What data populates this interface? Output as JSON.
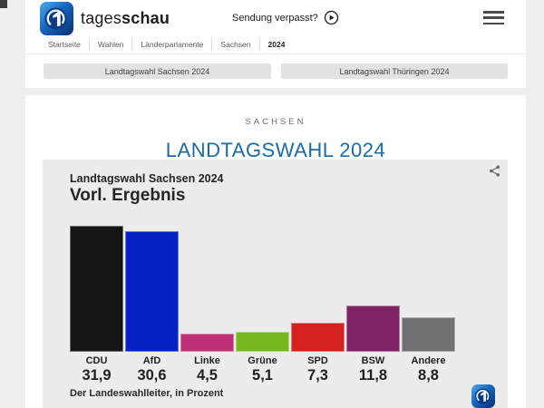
{
  "header": {
    "brand_regular": "tages",
    "brand_bold": "schau",
    "sendung_label": "Sendung verpasst?"
  },
  "breadcrumb": [
    "Startseite",
    "Wahlen",
    "Länderparlamente",
    "Sachsen",
    "2024"
  ],
  "nav_buttons": [
    "Landtagswahl Sachsen 2024",
    "Landtagswahl Thüringen 2024"
  ],
  "page": {
    "kicker": "SACHSEN",
    "title": "LANDTAGSWAHL 2024"
  },
  "colors": {
    "accent_blue": "#1a6bab",
    "card_gray": "#ececec"
  },
  "chart_data": {
    "type": "bar",
    "title": "Landtagswahl Sachsen 2024",
    "subtitle": "Vorl. Ergebnis",
    "source": "Der Landeswahlleiter, in Prozent",
    "categories": [
      "CDU",
      "AfD",
      "Linke",
      "Grüne",
      "SPD",
      "BSW",
      "Andere"
    ],
    "values": [
      31.9,
      30.6,
      4.5,
      5.1,
      7.3,
      11.8,
      8.8
    ],
    "value_labels": [
      "31,9",
      "30,6",
      "4,5",
      "5,1",
      "7,3",
      "11,8",
      "8,8"
    ],
    "bar_colors": [
      "#141414",
      "#0522c5",
      "#be3075",
      "#76b81e",
      "#d62121",
      "#7f2365",
      "#717173"
    ],
    "unit": "Prozent",
    "ylim": [
      0,
      32
    ],
    "grid": false,
    "legend": false
  }
}
